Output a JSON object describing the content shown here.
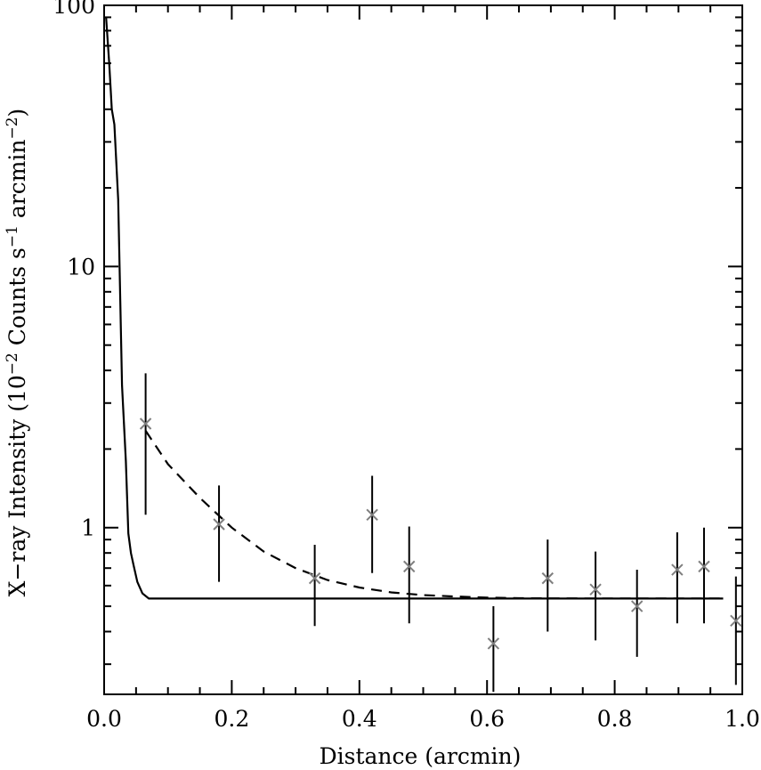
{
  "chart_data": {
    "type": "scatter",
    "title": "",
    "xlabel": "Distance (arcmin)",
    "ylabel": {
      "pre": "X−ray Intensity (10",
      "sup1": "−2",
      "mid": " Counts s",
      "sup2": "−1",
      "mid2": " arcmin",
      "sup3": "−2",
      "post": ")"
    },
    "xlim": [
      0.0,
      1.0
    ],
    "ylim": [
      0.23,
      100
    ],
    "yscale": "log",
    "grid": false,
    "x_ticks": [
      {
        "value": 0.0,
        "label": "0.0"
      },
      {
        "value": 0.2,
        "label": "0.2"
      },
      {
        "value": 0.4,
        "label": "0.4"
      },
      {
        "value": 0.6,
        "label": "0.6"
      },
      {
        "value": 0.8,
        "label": "0.8"
      },
      {
        "value": 1.0,
        "label": "1.0"
      }
    ],
    "y_ticks": [
      {
        "value": 1,
        "label": "1"
      },
      {
        "value": 10,
        "label": "10"
      },
      {
        "value": 100,
        "label": "100"
      }
    ],
    "series": [
      {
        "kind": "points_with_errorbars",
        "marker": "x",
        "color": "#7f7f7f",
        "errorbar_color": "#000000",
        "points": [
          {
            "x": 0.065,
            "y": 2.5,
            "ylo": 1.12,
            "yhi": 3.9
          },
          {
            "x": 0.18,
            "y": 1.03,
            "ylo": 0.62,
            "yhi": 1.45
          },
          {
            "x": 0.33,
            "y": 0.64,
            "ylo": 0.42,
            "yhi": 0.86
          },
          {
            "x": 0.42,
            "y": 1.12,
            "ylo": 0.67,
            "yhi": 1.58
          },
          {
            "x": 0.478,
            "y": 0.71,
            "ylo": 0.43,
            "yhi": 1.01
          },
          {
            "x": 0.61,
            "y": 0.36,
            "ylo": 0.235,
            "yhi": 0.5
          },
          {
            "x": 0.695,
            "y": 0.64,
            "ylo": 0.4,
            "yhi": 0.9
          },
          {
            "x": 0.77,
            "y": 0.58,
            "ylo": 0.37,
            "yhi": 0.81
          },
          {
            "x": 0.835,
            "y": 0.5,
            "ylo": 0.32,
            "yhi": 0.69
          },
          {
            "x": 0.898,
            "y": 0.69,
            "ylo": 0.43,
            "yhi": 0.96
          },
          {
            "x": 0.94,
            "y": 0.71,
            "ylo": 0.43,
            "yhi": 1.0
          },
          {
            "x": 0.99,
            "y": 0.44,
            "ylo": 0.25,
            "yhi": 0.65
          }
        ]
      },
      {
        "kind": "line",
        "style": "solid",
        "color": "#000000",
        "x": [
          0.003,
          0.008,
          0.012,
          0.016,
          0.022,
          0.028,
          0.034,
          0.038,
          0.042,
          0.046,
          0.052,
          0.06,
          0.07,
          0.1,
          0.4,
          0.7,
          0.97
        ],
        "y": [
          90,
          60,
          40,
          35,
          18,
          3.5,
          1.8,
          0.95,
          0.8,
          0.72,
          0.62,
          0.56,
          0.535,
          0.535,
          0.535,
          0.535,
          0.535
        ]
      },
      {
        "kind": "line",
        "style": "dashed",
        "color": "#000000",
        "x": [
          0.065,
          0.1,
          0.15,
          0.2,
          0.25,
          0.3,
          0.35,
          0.4,
          0.45,
          0.5,
          0.55,
          0.6,
          0.65,
          0.7,
          0.8,
          0.9,
          0.97
        ],
        "y": [
          2.35,
          1.75,
          1.3,
          1.0,
          0.81,
          0.7,
          0.63,
          0.59,
          0.565,
          0.552,
          0.545,
          0.54,
          0.537,
          0.536,
          0.535,
          0.535,
          0.535
        ]
      }
    ]
  }
}
